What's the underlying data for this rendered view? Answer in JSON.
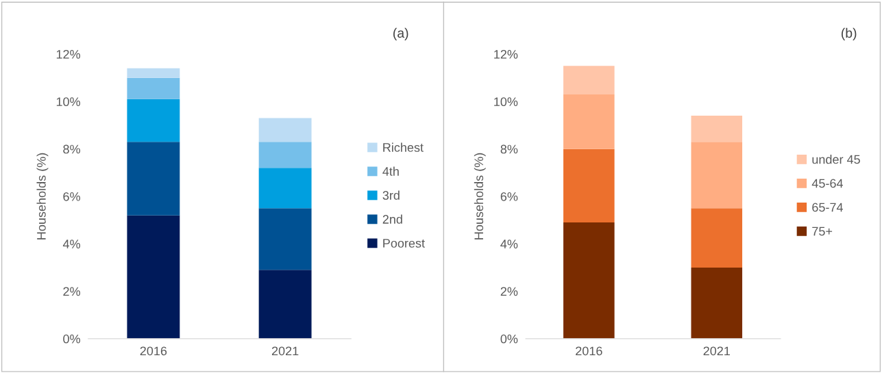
{
  "chart_data": [
    {
      "type": "bar",
      "stacked": true,
      "ylabel": "Households (%)",
      "categories": [
        "2016",
        "2021"
      ],
      "annotations": [
        "(a)"
      ],
      "series": [
        {
          "name": "Poorest",
          "color": "#001a5a",
          "values": [
            5.2,
            2.9
          ]
        },
        {
          "name": "2nd",
          "color": "#005193",
          "values": [
            3.1,
            2.6
          ]
        },
        {
          "name": "3rd",
          "color": "#009fdf",
          "values": [
            1.8,
            1.7
          ]
        },
        {
          "name": "4th",
          "color": "#75bfea",
          "values": [
            0.9,
            1.1
          ]
        },
        {
          "name": "Richest",
          "color": "#bcdcf4",
          "values": [
            0.4,
            1.0
          ]
        }
      ],
      "ylim": [
        0,
        12
      ],
      "yticks": [
        {
          "value": 0,
          "label": "0%"
        },
        {
          "value": 2,
          "label": "2%"
        },
        {
          "value": 4,
          "label": "4%"
        },
        {
          "value": 6,
          "label": "6%"
        },
        {
          "value": 8,
          "label": "8%"
        },
        {
          "value": 10,
          "label": "10%"
        },
        {
          "value": 12,
          "label": "12%"
        }
      ],
      "grid": false,
      "legend": "right"
    },
    {
      "type": "bar",
      "stacked": true,
      "ylabel": "Households (%)",
      "categories": [
        "2016",
        "2021"
      ],
      "annotations": [
        "(b)"
      ],
      "series": [
        {
          "name": "75+",
          "color": "#7a2c00",
          "values": [
            4.9,
            3.0
          ]
        },
        {
          "name": "65-74",
          "color": "#ec702d",
          "values": [
            3.1,
            2.5
          ]
        },
        {
          "name": "45-64",
          "color": "#ffad82",
          "values": [
            2.3,
            2.8
          ]
        },
        {
          "name": "under 45",
          "color": "#ffc5a8",
          "values": [
            1.2,
            1.1
          ]
        }
      ],
      "ylim": [
        0,
        12
      ],
      "yticks": [
        {
          "value": 0,
          "label": "0%"
        },
        {
          "value": 2,
          "label": "2%"
        },
        {
          "value": 4,
          "label": "4%"
        },
        {
          "value": 6,
          "label": "6%"
        },
        {
          "value": 8,
          "label": "8%"
        },
        {
          "value": 10,
          "label": "10%"
        },
        {
          "value": 12,
          "label": "12%"
        }
      ],
      "grid": false,
      "legend": "right"
    }
  ]
}
